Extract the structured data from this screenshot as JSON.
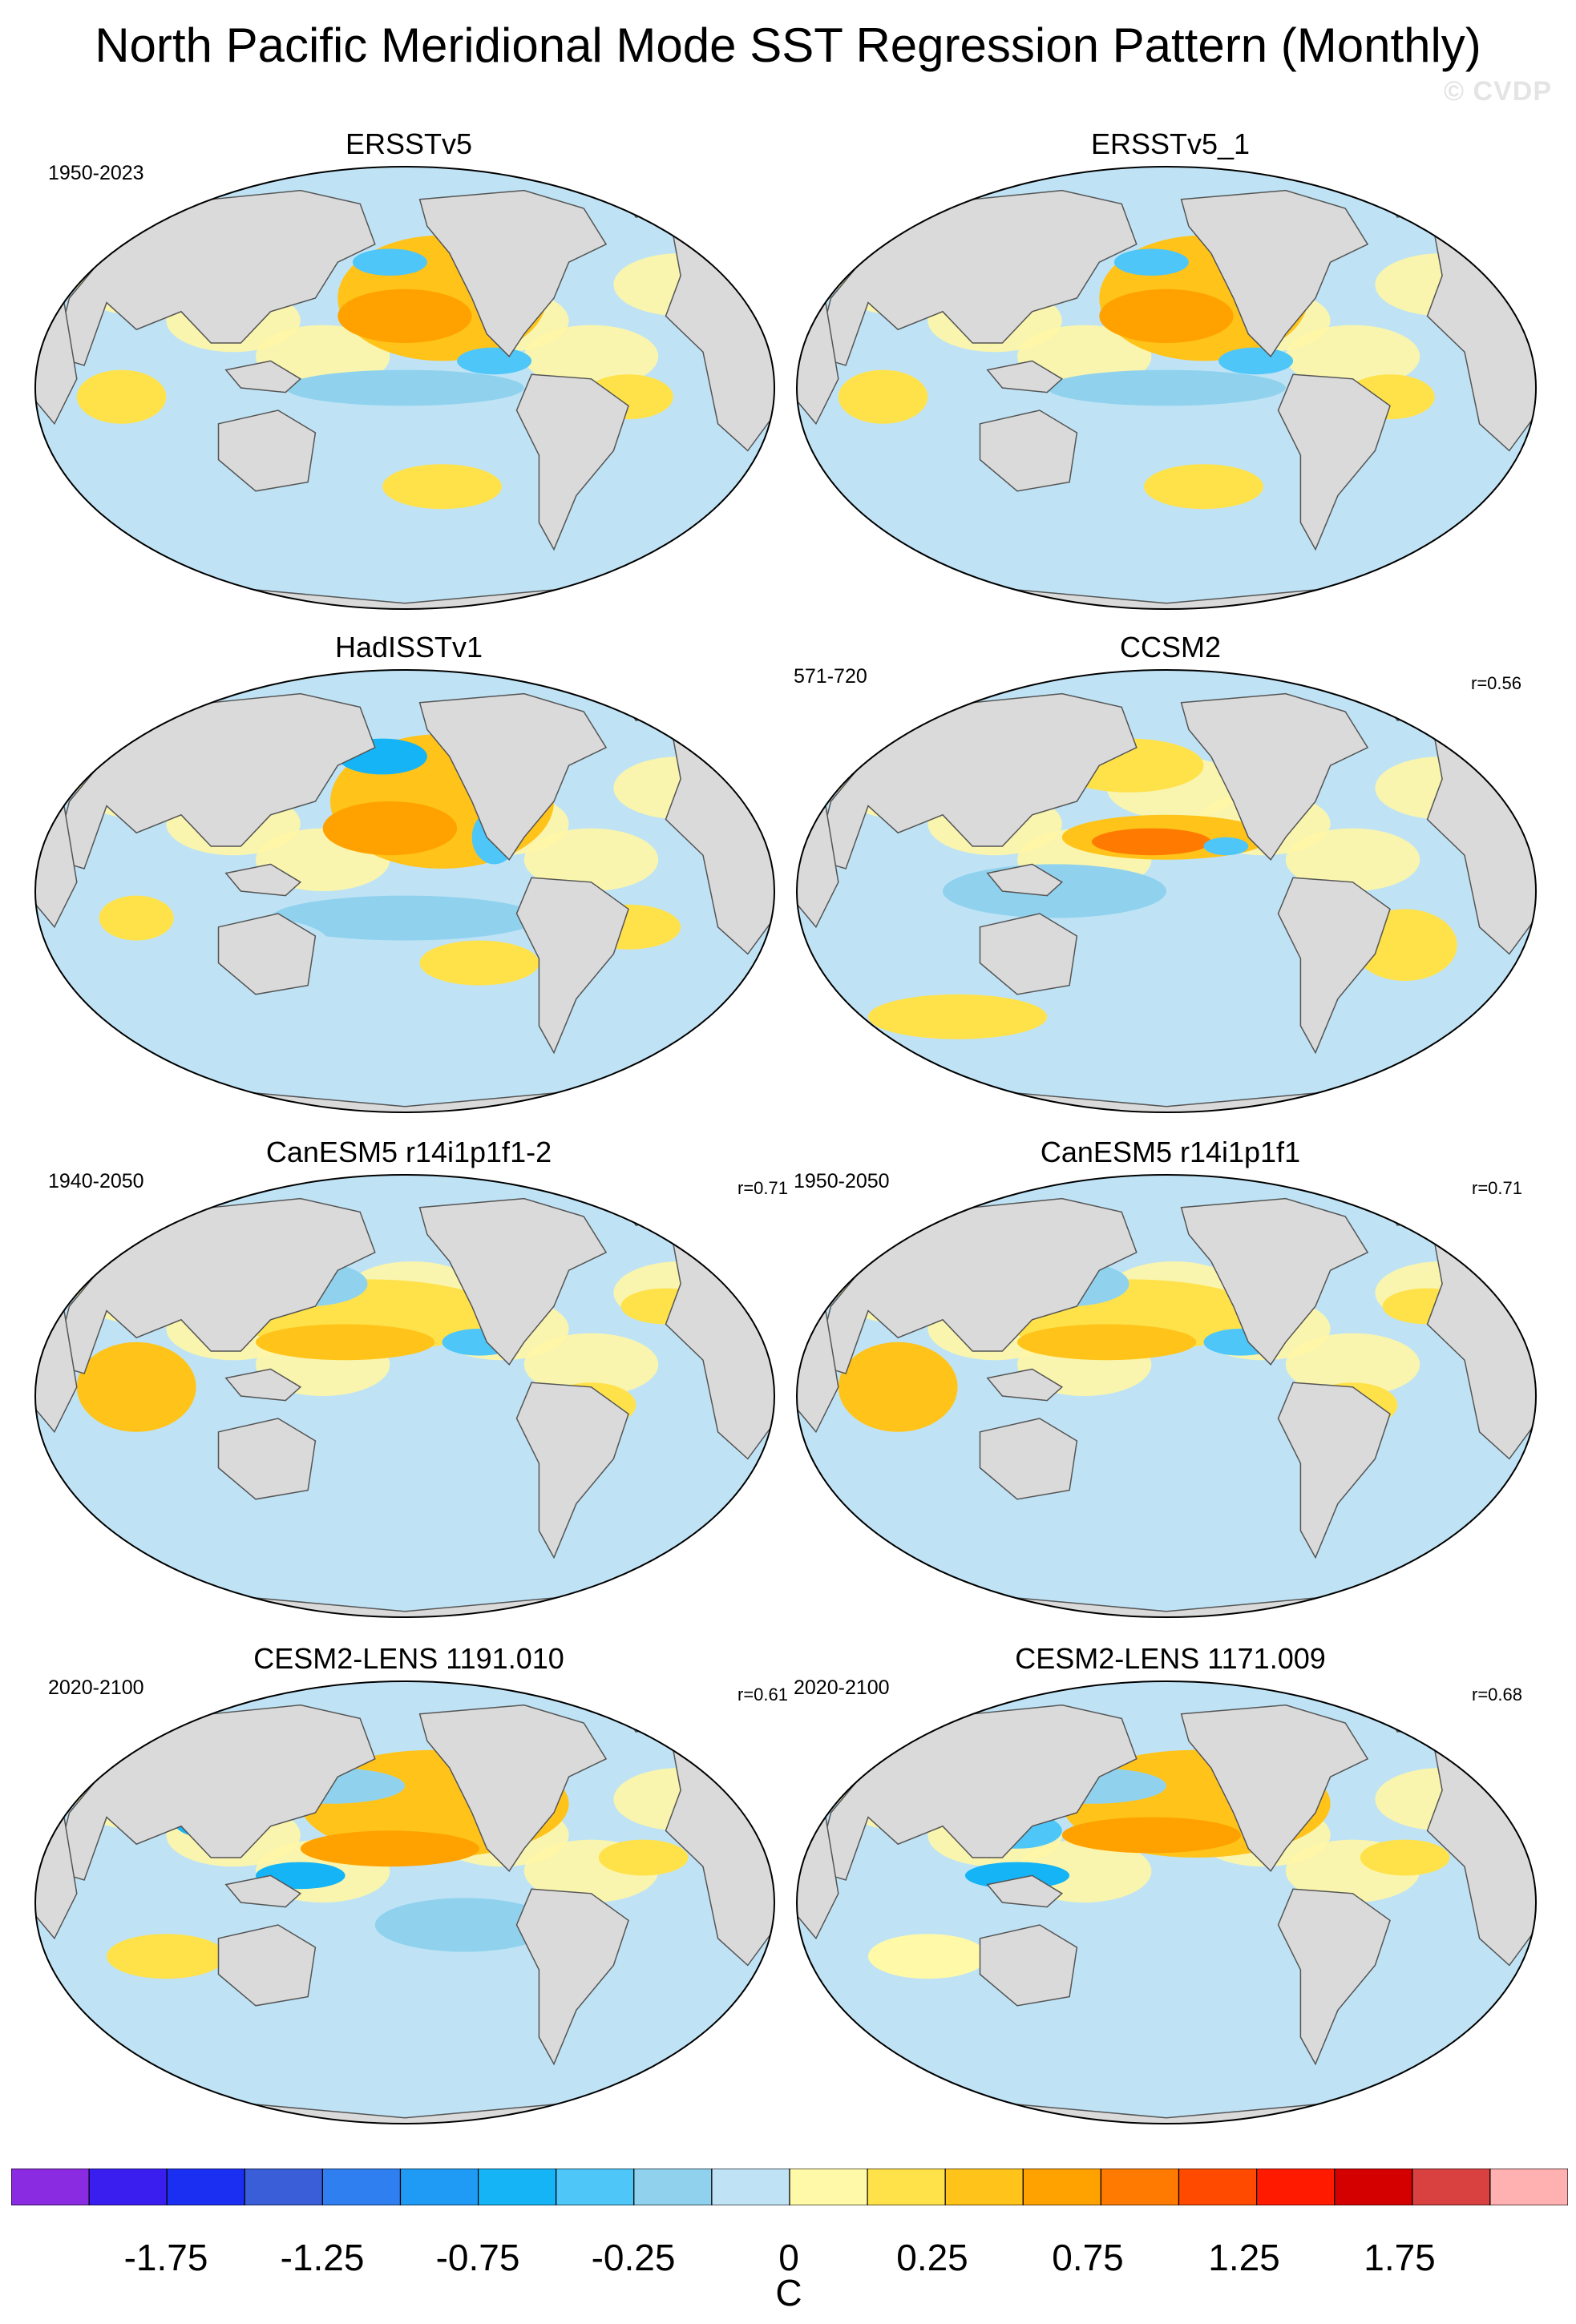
{
  "title": "North Pacific Meridional Mode SST Regression Pattern (Monthly)",
  "watermark": "© CVDP",
  "panels": [
    {
      "title": "ERSSTv5",
      "years": "1950-2023",
      "r": ""
    },
    {
      "title": "ERSSTv5_1",
      "years": "",
      "r": ""
    },
    {
      "title": "HadISSTv1",
      "years": "",
      "r": ""
    },
    {
      "title": "CCSM2",
      "years": "571-720",
      "r": "r=0.56"
    },
    {
      "title": "CanESM5 r14i1p1f1-2",
      "years": "1940-2050",
      "r": "r=0.71"
    },
    {
      "title": "CanESM5 r14i1p1f1",
      "years": "1950-2050",
      "r": "r=0.71"
    },
    {
      "title": "CESM2-LENS 1191.010",
      "years": "2020-2100",
      "r": "r=0.61"
    },
    {
      "title": "CESM2-LENS 1171.009",
      "years": "2020-2100",
      "r": "r=0.68"
    }
  ],
  "colorbar": {
    "unit": "C",
    "labels": [
      "-1.75",
      "-1.25",
      "-0.75",
      "-0.25",
      "0",
      "0.25",
      "0.75",
      "1.25",
      "1.75"
    ],
    "colors": [
      "#8a2be2",
      "#3a1ef0",
      "#1a2ff2",
      "#3a5ed8",
      "#2f7ff0",
      "#1f9bf5",
      "#14b4f7",
      "#4ec6f8",
      "#90d2ee",
      "#bfe3f5",
      "#fff9a8",
      "#ffe14a",
      "#ffc31a",
      "#ffa200",
      "#ff7a00",
      "#ff4a00",
      "#ff1a00",
      "#d40000",
      "#d94040",
      "#ffb0b0"
    ]
  },
  "palette": {
    "land": "#dadada",
    "coast": "#555555",
    "ocean_neutral_warm": "#fff6a6",
    "ocean_neutral_cool": "#bfe3f5"
  }
}
